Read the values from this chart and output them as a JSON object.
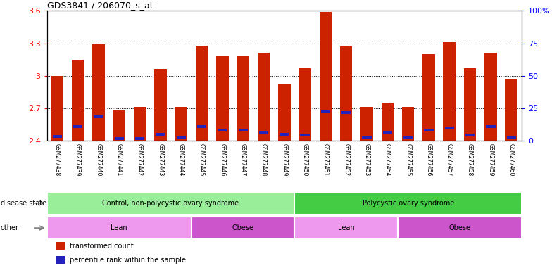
{
  "title": "GDS3841 / 206070_s_at",
  "samples": [
    "GSM277438",
    "GSM277439",
    "GSM277440",
    "GSM277441",
    "GSM277442",
    "GSM277443",
    "GSM277444",
    "GSM277445",
    "GSM277446",
    "GSM277447",
    "GSM277448",
    "GSM277449",
    "GSM277450",
    "GSM277451",
    "GSM277452",
    "GSM277453",
    "GSM277454",
    "GSM277455",
    "GSM277456",
    "GSM277457",
    "GSM277458",
    "GSM277459",
    "GSM277460"
  ],
  "transformed_counts": [
    3.0,
    3.15,
    3.29,
    2.68,
    2.71,
    3.06,
    2.71,
    3.28,
    3.18,
    3.18,
    3.21,
    2.92,
    3.07,
    3.59,
    3.27,
    2.71,
    2.75,
    2.71,
    3.2,
    3.31,
    3.07,
    3.21,
    2.97
  ],
  "percentile_values": [
    2.44,
    2.53,
    2.62,
    2.42,
    2.42,
    2.46,
    2.43,
    2.53,
    2.5,
    2.5,
    2.47,
    2.46,
    2.45,
    2.67,
    2.66,
    2.43,
    2.48,
    2.43,
    2.5,
    2.52,
    2.45,
    2.53,
    2.43
  ],
  "ymin": 2.4,
  "ymax": 3.6,
  "yticks_left": [
    2.4,
    2.7,
    3.0,
    3.3,
    3.6
  ],
  "ytick_labels_left": [
    "2.4",
    "2.7",
    "3",
    "3.3",
    "3.6"
  ],
  "ytick_labels_right": [
    "0",
    "25",
    "50",
    "75",
    "100%"
  ],
  "bar_color": "#cc2200",
  "percentile_color": "#2222bb",
  "tick_bg_color": "#c8c8c8",
  "disease_state_groups": [
    {
      "label": "Control, non-polycystic ovary syndrome",
      "start": 0,
      "end": 12,
      "color": "#99ee99"
    },
    {
      "label": "Polycystic ovary syndrome",
      "start": 12,
      "end": 23,
      "color": "#44cc44"
    }
  ],
  "other_groups": [
    {
      "label": "Lean",
      "start": 0,
      "end": 7,
      "color": "#ee99ee"
    },
    {
      "label": "Obese",
      "start": 7,
      "end": 12,
      "color": "#cc55cc"
    },
    {
      "label": "Lean",
      "start": 12,
      "end": 17,
      "color": "#ee99ee"
    },
    {
      "label": "Obese",
      "start": 17,
      "end": 23,
      "color": "#cc55cc"
    }
  ],
  "disease_state_label": "disease state",
  "other_label": "other",
  "legend_items": [
    {
      "label": "transformed count",
      "color": "#cc2200"
    },
    {
      "label": "percentile rank within the sample",
      "color": "#2222bb"
    }
  ]
}
